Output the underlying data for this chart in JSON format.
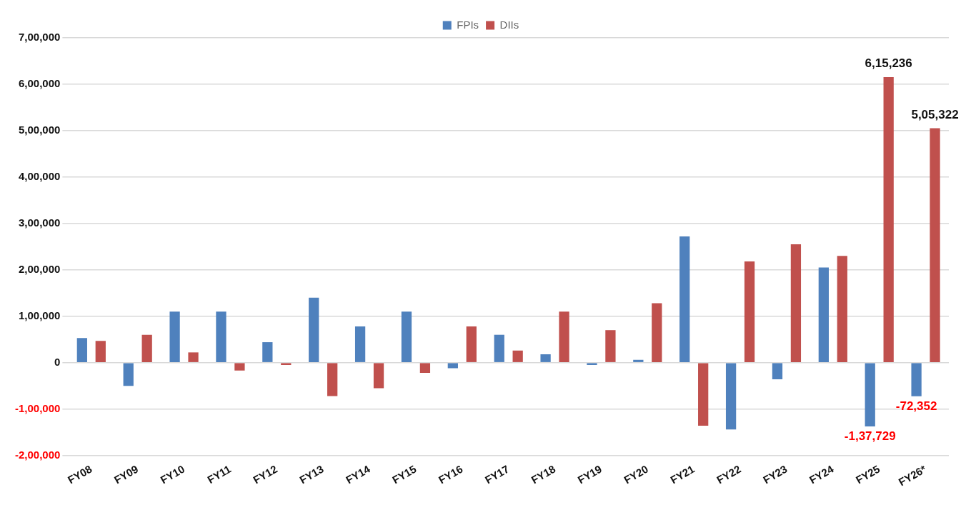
{
  "chart_data": {
    "type": "bar",
    "categories": [
      "FY08",
      "FY09",
      "FY10",
      "FY11",
      "FY12",
      "FY13",
      "FY14",
      "FY15",
      "FY16",
      "FY17",
      "FY18",
      "FY19",
      "FY20",
      "FY21",
      "FY22",
      "FY23",
      "FY24",
      "FY25",
      "FY26*"
    ],
    "series": [
      {
        "name": "FPIs",
        "color": "#4f81bd",
        "values": [
          53000,
          -50000,
          110000,
          110000,
          44000,
          140000,
          78000,
          110000,
          -12000,
          60000,
          18000,
          -5000,
          6000,
          272000,
          -144000,
          -36000,
          205000,
          -137729,
          -72352
        ],
        "value_labels": [
          null,
          null,
          null,
          null,
          null,
          null,
          null,
          null,
          null,
          null,
          null,
          null,
          null,
          null,
          null,
          null,
          null,
          "-1,37,729",
          "-72,352"
        ]
      },
      {
        "name": "DIIs",
        "color": "#c0504d",
        "values": [
          47000,
          60000,
          22000,
          -17000,
          -5000,
          -72000,
          -55000,
          -22000,
          78000,
          26000,
          110000,
          70000,
          128000,
          -136000,
          218000,
          255000,
          230000,
          615236,
          505322
        ],
        "value_labels": [
          null,
          null,
          null,
          null,
          null,
          null,
          null,
          null,
          null,
          null,
          null,
          null,
          null,
          null,
          null,
          null,
          null,
          "6,15,236",
          "5,05,322"
        ]
      }
    ],
    "ylim": [
      -200000,
      700000
    ],
    "yticks": [
      {
        "value": -200000,
        "label": "-2,00,000"
      },
      {
        "value": -100000,
        "label": "-1,00,000"
      },
      {
        "value": 0,
        "label": "0"
      },
      {
        "value": 100000,
        "label": "1,00,000"
      },
      {
        "value": 200000,
        "label": "2,00,000"
      },
      {
        "value": 300000,
        "label": "3,00,000"
      },
      {
        "value": 400000,
        "label": "4,00,000"
      },
      {
        "value": 500000,
        "label": "5,00,000"
      },
      {
        "value": 600000,
        "label": "6,00,000"
      },
      {
        "value": 700000,
        "label": "7,00,000"
      }
    ],
    "grid": "y",
    "legend": "top"
  }
}
